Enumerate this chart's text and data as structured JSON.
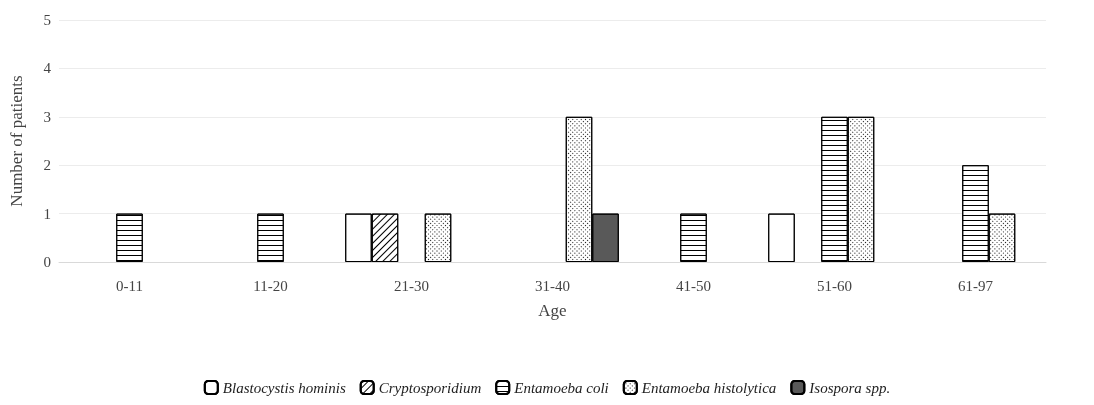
{
  "chart_data": {
    "type": "bar",
    "xlabel": "Age",
    "ylabel": "Number of patients",
    "categories": [
      "0-11",
      "11-20",
      "21-30",
      "31-40",
      "41-50",
      "51-60",
      "61-97"
    ],
    "series": [
      {
        "name": "Blastocystis hominis",
        "color": "#ffffff",
        "values": [
          0,
          0,
          1,
          0,
          0,
          1,
          0
        ]
      },
      {
        "name": "Cryptosporidium",
        "color": "#ffffff",
        "values": [
          0,
          0,
          1,
          0,
          0,
          0,
          0
        ]
      },
      {
        "name": "Entamoeba coli",
        "color": "#ffffff",
        "values": [
          1,
          1,
          0,
          0,
          1,
          3,
          2
        ]
      },
      {
        "name": "Entamoeba histolytica",
        "color": "#ffffff",
        "values": [
          0,
          0,
          1,
          3,
          0,
          3,
          1
        ]
      },
      {
        "name": "Isospora spp.",
        "color": "#595959",
        "values": [
          0,
          0,
          0,
          1,
          0,
          0,
          0
        ]
      }
    ],
    "ylim": [
      0,
      5
    ],
    "yticks": [
      0,
      1,
      2,
      3,
      4,
      5
    ],
    "grid": "y",
    "legend": "bottom"
  }
}
